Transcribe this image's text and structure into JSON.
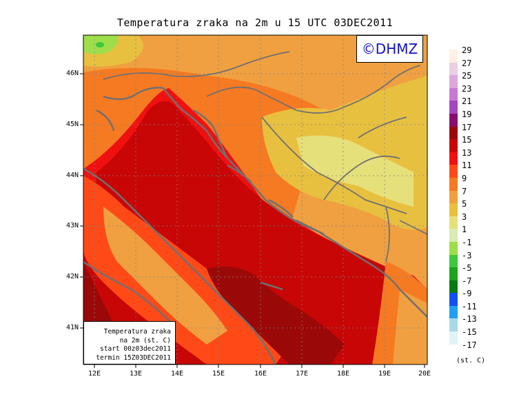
{
  "title": "Temperatura zraka na 2m u 15 UTC 03DEC2011",
  "logo": "©DHMZ",
  "info_box": {
    "line1": "Temperatura zraka",
    "line2": "na 2m (st. C)",
    "line3": "start 00z03dec2011",
    "line4": "termin 15Z03DEC2011"
  },
  "lat_labels": [
    "46N",
    "45N",
    "44N",
    "43N",
    "42N",
    "41N"
  ],
  "lon_labels": [
    "12E",
    "13E",
    "14E",
    "15E",
    "16E",
    "17E",
    "18E",
    "19E",
    "20E"
  ],
  "legend": {
    "units": "(st. C)",
    "items": [
      {
        "label": "29",
        "color": "#fdf0e4"
      },
      {
        "label": "27",
        "color": "#e8cfe2"
      },
      {
        "label": "25",
        "color": "#dca8dc"
      },
      {
        "label": "23",
        "color": "#c779d4"
      },
      {
        "label": "21",
        "color": "#a646c0"
      },
      {
        "label": "19",
        "color": "#8a0d6e"
      },
      {
        "label": "17",
        "color": "#9b0808"
      },
      {
        "label": "15",
        "color": "#c80606"
      },
      {
        "label": "13",
        "color": "#f01010"
      },
      {
        "label": "11",
        "color": "#ff4a18"
      },
      {
        "label": "9",
        "color": "#f57a22"
      },
      {
        "label": "7",
        "color": "#f0a040"
      },
      {
        "label": "5",
        "color": "#e8c040"
      },
      {
        "label": "3",
        "color": "#e6e07a"
      },
      {
        "label": "1",
        "color": "#d8ecb4"
      },
      {
        "label": "-1",
        "color": "#9ede4a"
      },
      {
        "label": "-3",
        "color": "#3cc83c"
      },
      {
        "label": "-5",
        "color": "#1aa51a"
      },
      {
        "label": "-7",
        "color": "#0a7a14"
      },
      {
        "label": "-9",
        "color": "#1450f0"
      },
      {
        "label": "-11",
        "color": "#1ea0f0"
      },
      {
        "label": "-13",
        "color": "#a8d8e8"
      },
      {
        "label": "-15",
        "color": "#e0f4f8"
      },
      {
        "label": "-17",
        "color": "#ffffff"
      }
    ]
  }
}
